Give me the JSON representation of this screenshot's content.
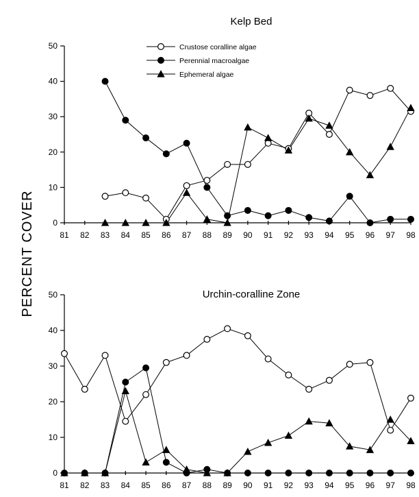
{
  "shared": {
    "ylabel": "PERCENT COVER"
  },
  "chart_data": [
    {
      "type": "line",
      "title": "Kelp Bed",
      "xlabel": "",
      "ylabel": "PERCENT COVER",
      "x": [
        81,
        82,
        83,
        84,
        85,
        86,
        87,
        88,
        89,
        90,
        91,
        92,
        93,
        94,
        95,
        96,
        97,
        98
      ],
      "x_tick_labels": [
        "81",
        "82",
        "83",
        "84",
        "85",
        "86",
        "87",
        "88",
        "89",
        "90",
        "91",
        "92",
        "93",
        "94",
        "95",
        "96",
        "97",
        "98"
      ],
      "y_tick_labels": [
        "0",
        "10",
        "20",
        "30",
        "40",
        "50"
      ],
      "ylim": [
        0,
        50
      ],
      "grid": false,
      "legend": "top-center",
      "series": [
        {
          "name": "Crustose coralline algae",
          "marker": "open-circle",
          "values": [
            null,
            null,
            7.5,
            8.5,
            7,
            1,
            10.5,
            12,
            16.5,
            16.5,
            22.5,
            21,
            31,
            25,
            37.5,
            36,
            38,
            31.5
          ]
        },
        {
          "name": "Perennial macroalgae",
          "marker": "filled-circle",
          "values": [
            null,
            null,
            40,
            29,
            24,
            19.5,
            22.5,
            10,
            2,
            3.5,
            2,
            3.5,
            1.5,
            0.5,
            7.5,
            0,
            1,
            1
          ]
        },
        {
          "name": "Ephemeral algae",
          "marker": "filled-triangle",
          "values": [
            null,
            null,
            0,
            0,
            0,
            0,
            8.5,
            1,
            0,
            27,
            24,
            20.5,
            29.5,
            27.5,
            20,
            13.5,
            21.5,
            32.5
          ]
        }
      ]
    },
    {
      "type": "line",
      "title": "Urchin-coralline Zone",
      "xlabel": "",
      "ylabel": "PERCENT COVER",
      "x": [
        81,
        82,
        83,
        84,
        85,
        86,
        87,
        88,
        89,
        90,
        91,
        92,
        93,
        94,
        95,
        96,
        97,
        98
      ],
      "x_tick_labels": [
        "81",
        "82",
        "83",
        "84",
        "85",
        "86",
        "87",
        "88",
        "89",
        "90",
        "91",
        "92",
        "93",
        "94",
        "95",
        "96",
        "97",
        "98"
      ],
      "y_tick_labels": [
        "0",
        "10",
        "20",
        "30",
        "40",
        "50"
      ],
      "ylim": [
        0,
        50
      ],
      "grid": false,
      "legend": "none",
      "series": [
        {
          "name": "Crustose coralline algae",
          "marker": "open-circle",
          "values": [
            33.5,
            23.5,
            33,
            14.5,
            22,
            31,
            33,
            37.5,
            40.5,
            38.5,
            32,
            27.5,
            23.5,
            26,
            30.5,
            31,
            12,
            21
          ]
        },
        {
          "name": "Perennial macroalgae",
          "marker": "filled-circle",
          "values": [
            0,
            0,
            0,
            25.5,
            29.5,
            3,
            0,
            1,
            0,
            0,
            0,
            0,
            0,
            0,
            0,
            0,
            0,
            0
          ]
        },
        {
          "name": "Ephemeral algae",
          "marker": "filled-triangle",
          "values": [
            0,
            0,
            0,
            23,
            3,
            6.5,
            1,
            0,
            0,
            6,
            8.5,
            10.5,
            14.5,
            14,
            7.5,
            6.5,
            15,
            9
          ]
        }
      ]
    }
  ]
}
